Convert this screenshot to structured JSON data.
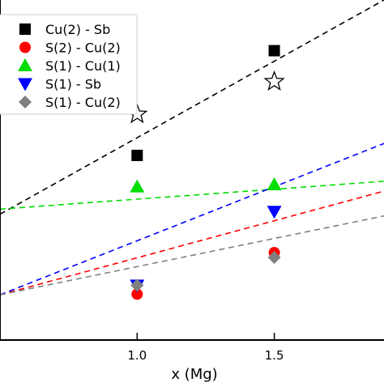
{
  "chart_data": {
    "type": "scatter",
    "xlabel": "x (Mg)",
    "ylabel": "",
    "xlim": [
      0.5,
      1.9
    ],
    "ylim": [
      0.0,
      1.0
    ],
    "xticks": [
      {
        "value": 1.0,
        "label": "1.0"
      },
      {
        "value": 1.5,
        "label": "1.5"
      }
    ],
    "legend_position": "top-left",
    "series": [
      {
        "name": "Cu(2) - Sb",
        "marker": "square",
        "color": "#000000",
        "points": [
          {
            "x": 1.0,
            "y": 0.543
          },
          {
            "x": 1.5,
            "y": 0.851
          }
        ],
        "fit": {
          "x": [
            0.5,
            1.9
          ],
          "y": [
            0.37,
            1.0
          ]
        }
      },
      {
        "name": "S(2) - Cu(2)",
        "marker": "circle",
        "color": "#ff0000",
        "points": [
          {
            "x": 1.0,
            "y": 0.135
          },
          {
            "x": 1.5,
            "y": 0.257
          }
        ],
        "fit": {
          "x": [
            0.5,
            1.9
          ],
          "y": [
            0.133,
            0.438
          ]
        }
      },
      {
        "name": "S(1) - Cu(1)",
        "marker": "triangle-up",
        "color": "#00dd00",
        "points": [
          {
            "x": 1.0,
            "y": 0.451
          },
          {
            "x": 1.5,
            "y": 0.457
          }
        ],
        "fit": {
          "x": [
            0.5,
            1.9
          ],
          "y": [
            0.385,
            0.467
          ]
        }
      },
      {
        "name": "S(1) - Sb",
        "marker": "triangle-down",
        "color": "#0000ff",
        "points": [
          {
            "x": 1.0,
            "y": 0.161
          },
          {
            "x": 1.5,
            "y": 0.378
          }
        ],
        "fit": {
          "x": [
            0.5,
            1.9
          ],
          "y": [
            0.133,
            0.578
          ]
        }
      },
      {
        "name": "S(1) - Cu(2)",
        "marker": "diamond",
        "color": "#808080",
        "points": [
          {
            "x": 1.0,
            "y": 0.161
          },
          {
            "x": 1.5,
            "y": 0.243
          }
        ],
        "fit": {
          "x": [
            0.5,
            1.9
          ],
          "y": [
            0.133,
            0.365
          ]
        }
      }
    ],
    "extra_markers": {
      "marker": "star",
      "color": "#000000",
      "points": [
        {
          "x": 1.0,
          "y": 0.664
        },
        {
          "x": 1.5,
          "y": 0.76
        }
      ]
    }
  }
}
